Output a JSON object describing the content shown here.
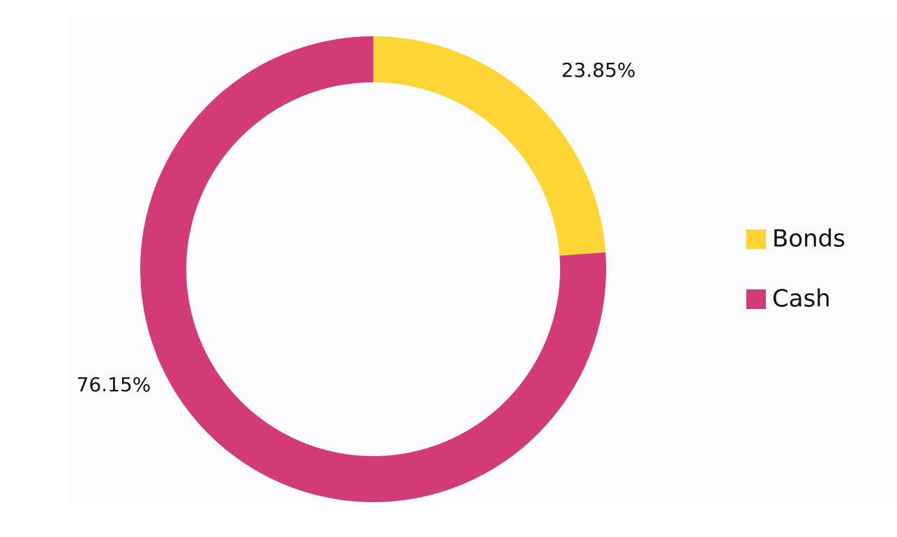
{
  "chart_data": {
    "type": "donut",
    "categories": [
      "Bonds",
      "Cash"
    ],
    "series": [
      {
        "values": [
          23.85,
          76.15
        ],
        "value_labels": [
          "23.85%",
          "76.15%"
        ],
        "colors": [
          "#fdd535",
          "#d23a78"
        ]
      }
    ],
    "legend": "right"
  }
}
